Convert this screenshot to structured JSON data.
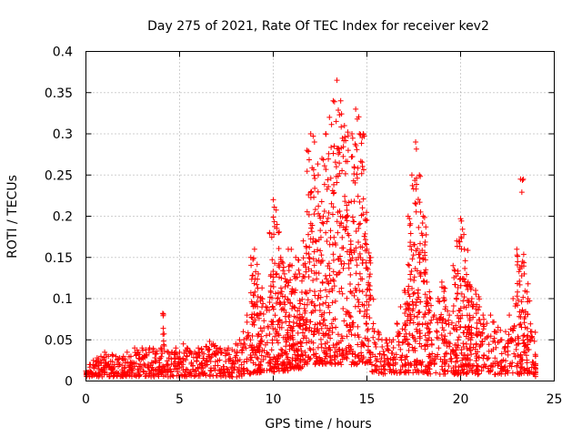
{
  "chart_data": {
    "type": "scatter",
    "title": "Day 275 of 2021, Rate Of TEC Index for receiver kev2",
    "xlabel": "GPS time / hours",
    "ylabel": "ROTI / TECUs",
    "xlim": [
      0,
      25
    ],
    "ylim": [
      0,
      0.4
    ],
    "x_ticks": [
      0,
      5,
      10,
      15,
      20,
      25
    ],
    "y_ticks": [
      0,
      0.05,
      0.1,
      0.15,
      0.2,
      0.25,
      0.3,
      0.35,
      0.4
    ],
    "x_tick_labels": [
      "0",
      "5",
      "10",
      "15",
      "20",
      "25"
    ],
    "y_tick_labels": [
      "0",
      "0.05",
      "0.1",
      "0.15",
      "0.2",
      "0.25",
      "0.3",
      "0.35",
      "0.4"
    ],
    "grid": true,
    "marker": "plus",
    "color": "#ff0000",
    "series": [
      {
        "x": [
          0.0,
          0.2,
          0.4,
          0.6,
          0.8,
          1.0,
          1.2,
          1.4,
          1.6,
          1.8,
          2.0,
          2.2,
          2.4,
          2.6,
          2.8,
          3.0,
          3.2,
          3.4,
          3.6,
          3.8,
          4.0,
          4.1,
          4.2,
          4.4,
          4.6,
          4.8,
          5.0,
          5.2,
          5.4,
          5.6,
          5.8,
          6.0,
          6.2,
          6.4,
          6.6,
          6.8,
          7.0,
          7.2,
          7.4,
          7.6,
          7.8,
          8.0,
          8.2,
          8.4,
          8.6,
          8.8,
          9.0,
          9.2,
          9.4,
          9.6,
          9.8,
          10.0,
          10.2,
          10.4,
          10.6,
          10.8,
          11.0,
          11.2,
          11.4,
          11.6,
          11.8,
          12.0,
          12.2,
          12.4,
          12.6,
          12.8,
          13.0,
          13.2,
          13.4,
          13.6,
          13.8,
          14.0,
          14.2,
          14.4,
          14.6,
          14.8,
          15.0,
          15.2,
          15.4,
          15.6,
          15.8,
          16.0,
          16.2,
          16.4,
          16.6,
          16.8,
          17.0,
          17.2,
          17.4,
          17.6,
          17.8,
          18.0,
          18.2,
          18.4,
          18.6,
          18.8,
          19.0,
          19.2,
          19.4,
          19.6,
          19.8,
          20.0,
          20.2,
          20.4,
          20.6,
          20.8,
          21.0,
          21.2,
          21.4,
          21.6,
          21.8,
          22.0,
          22.2,
          22.4,
          22.6,
          22.8,
          23.0,
          23.2,
          23.4,
          23.6,
          23.8,
          24.0
        ],
        "y_peak": [
          0.012,
          0.02,
          0.025,
          0.028,
          0.03,
          0.035,
          0.03,
          0.032,
          0.03,
          0.028,
          0.03,
          0.035,
          0.03,
          0.04,
          0.035,
          0.04,
          0.038,
          0.04,
          0.038,
          0.036,
          0.04,
          0.082,
          0.036,
          0.035,
          0.035,
          0.04,
          0.035,
          0.045,
          0.04,
          0.035,
          0.035,
          0.04,
          0.035,
          0.042,
          0.048,
          0.045,
          0.04,
          0.035,
          0.038,
          0.04,
          0.038,
          0.045,
          0.05,
          0.06,
          0.08,
          0.15,
          0.16,
          0.13,
          0.1,
          0.09,
          0.18,
          0.22,
          0.19,
          0.15,
          0.13,
          0.16,
          0.14,
          0.15,
          0.13,
          0.17,
          0.28,
          0.3,
          0.29,
          0.25,
          0.27,
          0.3,
          0.32,
          0.34,
          0.365,
          0.34,
          0.31,
          0.28,
          0.3,
          0.33,
          0.3,
          0.3,
          0.16,
          0.1,
          0.06,
          0.06,
          0.05,
          0.05,
          0.05,
          0.05,
          0.07,
          0.09,
          0.11,
          0.2,
          0.25,
          0.29,
          0.25,
          0.2,
          0.12,
          0.1,
          0.08,
          0.1,
          0.12,
          0.09,
          0.08,
          0.14,
          0.17,
          0.197,
          0.16,
          0.12,
          0.1,
          0.11,
          0.09,
          0.08,
          0.07,
          0.08,
          0.06,
          0.065,
          0.05,
          0.06,
          0.08,
          0.1,
          0.16,
          0.245,
          0.13,
          0.1,
          0.06,
          0.03
        ],
        "y_floor": [
          0.005,
          0.005,
          0.005,
          0.005,
          0.005,
          0.005,
          0.005,
          0.005,
          0.005,
          0.005,
          0.005,
          0.005,
          0.005,
          0.005,
          0.005,
          0.005,
          0.005,
          0.005,
          0.005,
          0.005,
          0.005,
          0.005,
          0.005,
          0.005,
          0.005,
          0.005,
          0.005,
          0.005,
          0.005,
          0.005,
          0.005,
          0.005,
          0.005,
          0.005,
          0.005,
          0.005,
          0.005,
          0.005,
          0.005,
          0.005,
          0.005,
          0.005,
          0.006,
          0.008,
          0.008,
          0.01,
          0.01,
          0.01,
          0.01,
          0.01,
          0.01,
          0.01,
          0.012,
          0.012,
          0.012,
          0.015,
          0.015,
          0.015,
          0.015,
          0.02,
          0.02,
          0.02,
          0.02,
          0.02,
          0.02,
          0.02,
          0.02,
          0.02,
          0.02,
          0.02,
          0.02,
          0.02,
          0.02,
          0.02,
          0.02,
          0.02,
          0.02,
          0.01,
          0.008,
          0.008,
          0.008,
          0.008,
          0.008,
          0.008,
          0.008,
          0.008,
          0.008,
          0.01,
          0.01,
          0.01,
          0.01,
          0.01,
          0.008,
          0.008,
          0.008,
          0.008,
          0.008,
          0.008,
          0.008,
          0.008,
          0.008,
          0.008,
          0.008,
          0.008,
          0.008,
          0.008,
          0.008,
          0.008,
          0.008,
          0.008,
          0.008,
          0.008,
          0.008,
          0.008,
          0.008,
          0.008,
          0.008,
          0.008,
          0.008,
          0.008,
          0.008,
          0.005
        ]
      }
    ]
  }
}
